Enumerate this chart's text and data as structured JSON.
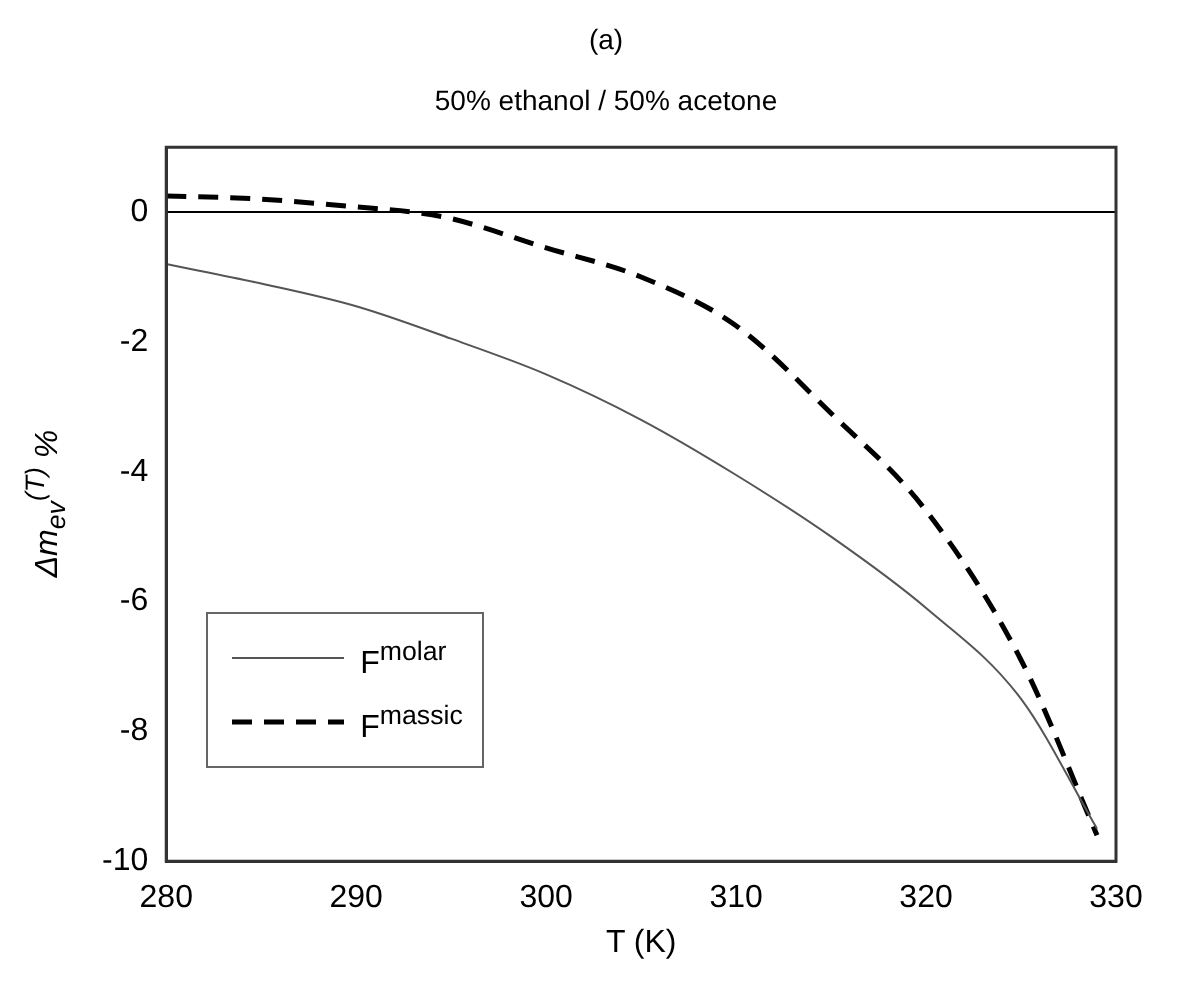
{
  "chart_data": {
    "type": "line",
    "title": "(a)",
    "subtitle": "50% ethanol / 50% acetone",
    "xlabel": "T (K)",
    "ylabel": "Δm$_{ev}$$^{(T)}$ %",
    "xlim": [
      280,
      330
    ],
    "xticks": [
      280,
      290,
      300,
      310,
      320,
      330
    ],
    "ylim": [
      -10,
      1
    ],
    "yticks": [
      -10,
      -8,
      -6,
      -4,
      -2,
      0
    ],
    "grid": false,
    "legend": "bottom left",
    "marker": "none",
    "ref_lines": [
      {
        "axis": "y",
        "value": 0,
        "color": "#000000"
      }
    ],
    "series": [
      {
        "name": "F$^{molar}$",
        "color": "#555555",
        "line_style": "solid",
        "x": [
          280,
          285,
          290,
          295,
          300,
          305,
          310,
          315,
          320,
          325,
          329
        ],
        "values": [
          -0.8,
          -1.1,
          -1.45,
          -1.95,
          -2.5,
          -3.2,
          -4.05,
          -5.0,
          -6.1,
          -7.5,
          -9.5
        ]
      },
      {
        "name": "F$^{massic}$",
        "color": "#000000",
        "line_style": "dashed",
        "x": [
          280,
          285,
          290,
          293,
          295,
          300,
          305,
          310,
          315,
          320,
          325,
          329
        ],
        "values": [
          0.25,
          0.2,
          0.08,
          0,
          -0.1,
          -0.55,
          -1.0,
          -1.75,
          -3.1,
          -4.6,
          -6.9,
          -9.6
        ]
      }
    ]
  }
}
